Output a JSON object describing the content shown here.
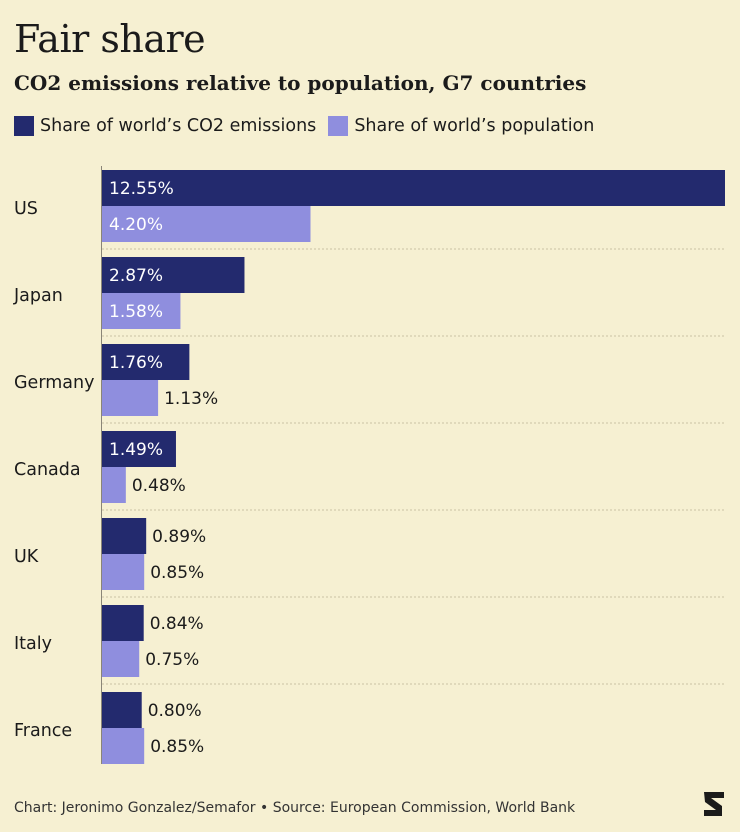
{
  "title": "Fair share",
  "subtitle": "CO2 emissions relative to population, G7 countries",
  "footer": "Chart: Jeronimo Gonzalez/Semafor • Source: European Commission, World Bank",
  "colors": {
    "background": "#f6f0d2",
    "emissions": "#232a6e",
    "population": "#8f8ede",
    "separator": "#c9c2a4"
  },
  "chart_data": {
    "type": "bar",
    "orientation": "horizontal",
    "title": "Fair share",
    "subtitle": "CO2 emissions relative to population, G7 countries",
    "categories": [
      "US",
      "Japan",
      "Germany",
      "Canada",
      "UK",
      "Italy",
      "France"
    ],
    "series": [
      {
        "name": "Share of world’s CO2 emissions",
        "values": [
          12.55,
          2.87,
          1.76,
          1.49,
          0.89,
          0.84,
          0.8
        ]
      },
      {
        "name": "Share of world’s population",
        "values": [
          4.2,
          1.58,
          1.13,
          0.48,
          0.85,
          0.75,
          0.85
        ]
      }
    ],
    "value_suffix": "%",
    "xlim": [
      0,
      12.55
    ],
    "legend_position": "top-left",
    "grid": false
  }
}
